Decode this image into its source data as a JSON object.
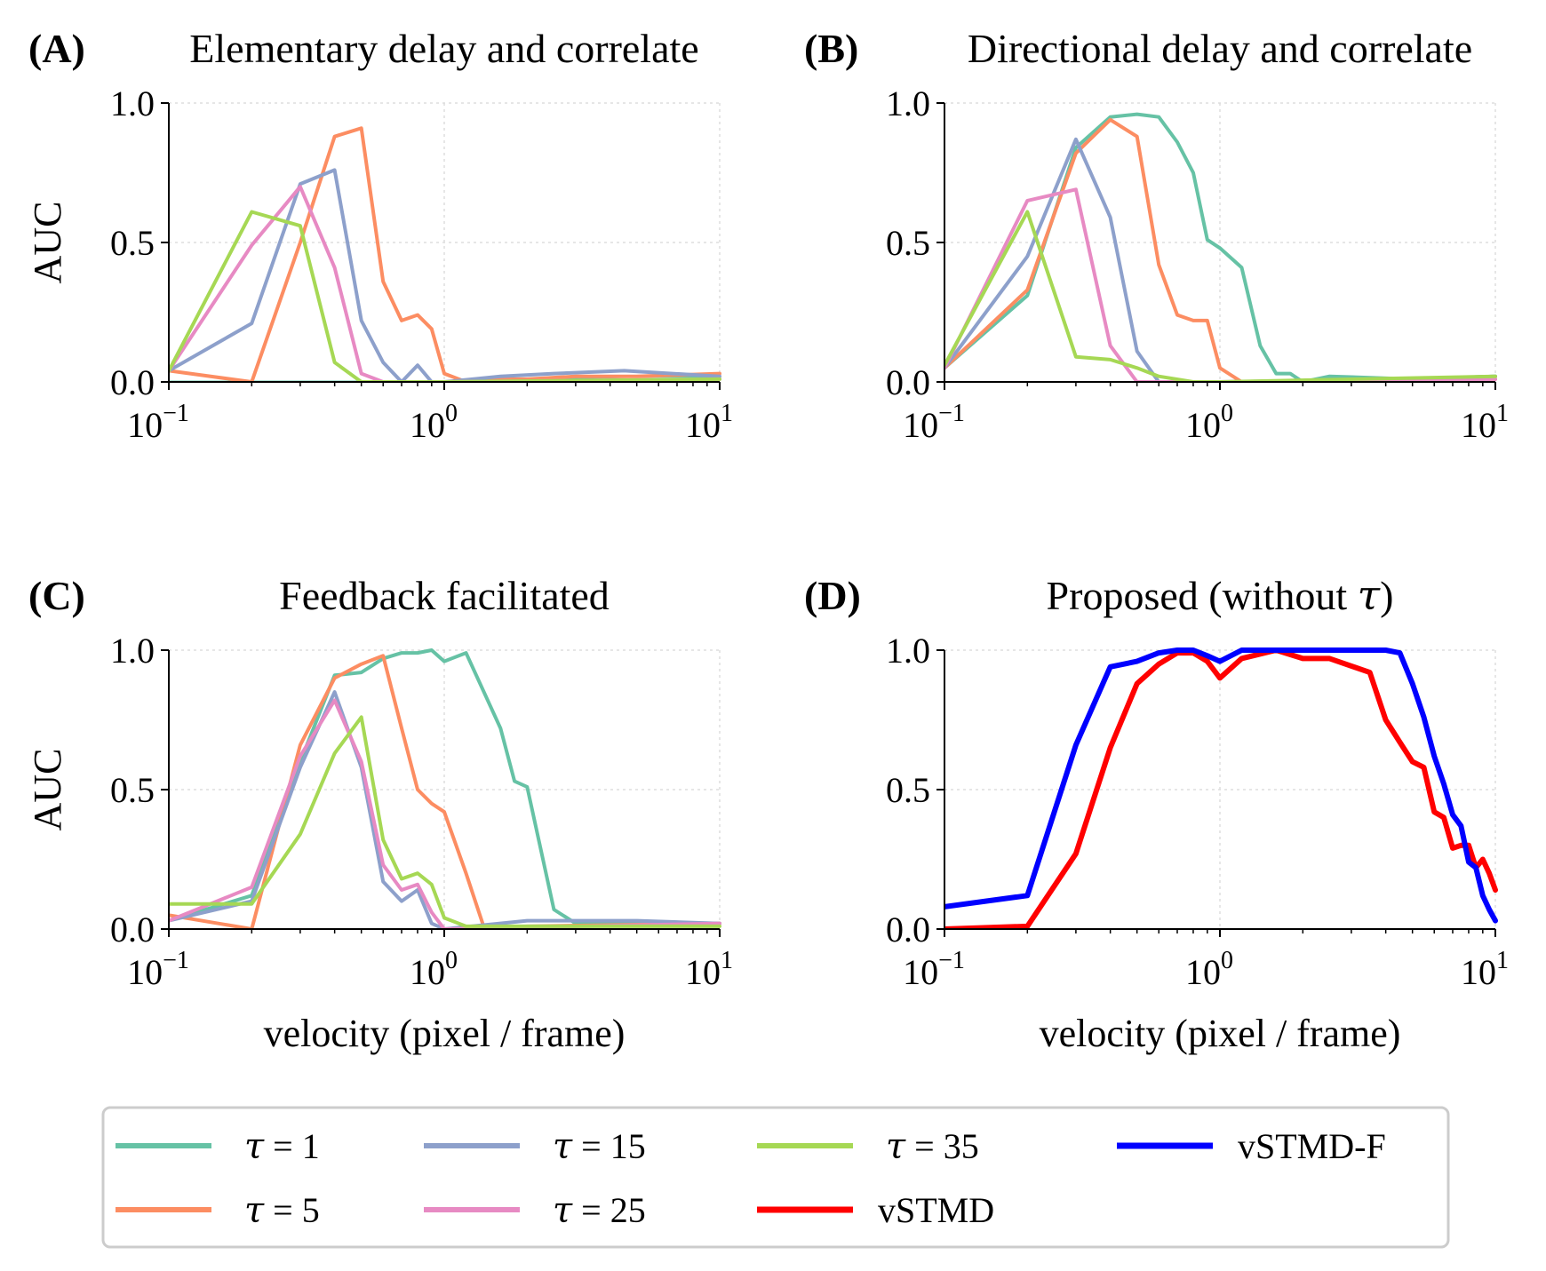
{
  "figure": {
    "legend": [
      {
        "tau": "τ",
        "label": " = 1",
        "color": "#66c2a5"
      },
      {
        "tau": "τ",
        "label": " = 5",
        "color": "#fc8d62"
      },
      {
        "tau": "τ",
        "label": " = 15",
        "color": "#8da0cb"
      },
      {
        "tau": "τ",
        "label": " = 25",
        "color": "#e78ac3"
      },
      {
        "tau": "τ",
        "label": " = 35",
        "color": "#a6d854"
      },
      {
        "tau": "",
        "label": "vSTMD",
        "color": "#ff0000"
      },
      {
        "tau": "",
        "label": "vSTMD-F",
        "color": "#0000ff"
      }
    ]
  },
  "chart_data": [
    {
      "type": "line",
      "panel": "(A)",
      "title": "Elementary delay and correlate",
      "xlabel": "",
      "ylabel": "AUC",
      "xscale": "log",
      "xlim": [
        0.1,
        10
      ],
      "ylim": [
        0,
        1
      ],
      "xticks": [
        "10",
        "10",
        "10"
      ],
      "xtick_exponents": [
        "−1",
        "0",
        "1"
      ],
      "yticks": [
        "0.0",
        "0.5",
        "1.0"
      ],
      "grid": true,
      "series": [
        {
          "name": "τ = 1",
          "color": "#66c2a5",
          "width": 3,
          "x": [
            0.1,
            0.2,
            0.3,
            0.4,
            0.5,
            1,
            2,
            5,
            10
          ],
          "y": [
            0.0,
            0.0,
            0.0,
            0.0,
            0.0,
            0.0,
            0.01,
            0.02,
            0.02
          ]
        },
        {
          "name": "τ = 5",
          "color": "#fc8d62",
          "width": 4,
          "x": [
            0.1,
            0.2,
            0.3,
            0.4,
            0.5,
            0.6,
            0.7,
            0.8,
            0.9,
            1.0,
            1.2,
            1.5,
            2,
            3,
            5,
            10
          ],
          "y": [
            0.04,
            0.0,
            0.5,
            0.88,
            0.91,
            0.36,
            0.22,
            0.24,
            0.19,
            0.03,
            0.0,
            0.01,
            0.01,
            0.02,
            0.02,
            0.03
          ]
        },
        {
          "name": "τ = 15",
          "color": "#8da0cb",
          "width": 4,
          "x": [
            0.1,
            0.2,
            0.3,
            0.4,
            0.5,
            0.6,
            0.7,
            0.8,
            0.9,
            1.0,
            1.6,
            2.5,
            4.5,
            10
          ],
          "y": [
            0.04,
            0.21,
            0.71,
            0.76,
            0.22,
            0.07,
            0.0,
            0.06,
            0.0,
            0.0,
            0.02,
            0.03,
            0.04,
            0.02
          ]
        },
        {
          "name": "τ = 25",
          "color": "#e78ac3",
          "width": 4,
          "x": [
            0.1,
            0.2,
            0.3,
            0.4,
            0.5,
            0.6,
            1.0,
            10
          ],
          "y": [
            0.04,
            0.49,
            0.7,
            0.41,
            0.03,
            0.0,
            0.0,
            0.01
          ]
        },
        {
          "name": "τ = 35",
          "color": "#a6d854",
          "width": 4,
          "x": [
            0.1,
            0.2,
            0.3,
            0.4,
            0.5,
            0.6,
            1.0,
            10
          ],
          "y": [
            0.04,
            0.61,
            0.56,
            0.07,
            0.0,
            0.0,
            0.0,
            0.01
          ]
        }
      ]
    },
    {
      "type": "line",
      "panel": "(B)",
      "title": "Directional delay and correlate",
      "xlabel": "",
      "ylabel": "",
      "xscale": "log",
      "xlim": [
        0.1,
        10
      ],
      "ylim": [
        0,
        1
      ],
      "xticks": [
        "10",
        "10",
        "10"
      ],
      "xtick_exponents": [
        "−1",
        "0",
        "1"
      ],
      "yticks": [
        "0.0",
        "0.5",
        "1.0"
      ],
      "grid": true,
      "series": [
        {
          "name": "τ = 1",
          "color": "#66c2a5",
          "width": 4,
          "x": [
            0.1,
            0.2,
            0.3,
            0.4,
            0.5,
            0.6,
            0.7,
            0.8,
            0.9,
            1.0,
            1.2,
            1.4,
            1.6,
            1.8,
            2,
            2.5,
            5,
            10
          ],
          "y": [
            0.05,
            0.31,
            0.84,
            0.95,
            0.96,
            0.95,
            0.86,
            0.75,
            0.51,
            0.48,
            0.41,
            0.13,
            0.03,
            0.03,
            0.0,
            0.02,
            0.01,
            0.02
          ]
        },
        {
          "name": "τ = 5",
          "color": "#fc8d62",
          "width": 4,
          "x": [
            0.1,
            0.2,
            0.3,
            0.4,
            0.5,
            0.6,
            0.7,
            0.8,
            0.9,
            1.0,
            1.2,
            10
          ],
          "y": [
            0.05,
            0.33,
            0.82,
            0.94,
            0.88,
            0.42,
            0.24,
            0.22,
            0.22,
            0.05,
            0.0,
            0.01
          ]
        },
        {
          "name": "τ = 15",
          "color": "#8da0cb",
          "width": 4,
          "x": [
            0.1,
            0.2,
            0.3,
            0.4,
            0.5,
            0.6,
            0.7,
            1.0,
            5,
            10
          ],
          "y": [
            0.05,
            0.45,
            0.87,
            0.59,
            0.11,
            0.0,
            0.0,
            0.0,
            0.01,
            0.02
          ]
        },
        {
          "name": "τ = 25",
          "color": "#e78ac3",
          "width": 4,
          "x": [
            0.1,
            0.2,
            0.3,
            0.4,
            0.5,
            1.0,
            10
          ],
          "y": [
            0.05,
            0.65,
            0.69,
            0.13,
            0.0,
            0.0,
            0.01
          ]
        },
        {
          "name": "τ = 35",
          "color": "#a6d854",
          "width": 4,
          "x": [
            0.1,
            0.2,
            0.3,
            0.4,
            0.5,
            0.6,
            0.8,
            1.0,
            10
          ],
          "y": [
            0.06,
            0.61,
            0.09,
            0.08,
            0.05,
            0.02,
            0.0,
            0.0,
            0.02
          ]
        }
      ]
    },
    {
      "type": "line",
      "panel": "(C)",
      "title": "Feedback facilitated",
      "xlabel": "velocity (pixel / frame)",
      "ylabel": "AUC",
      "xscale": "log",
      "xlim": [
        0.1,
        10
      ],
      "ylim": [
        0,
        1
      ],
      "xticks": [
        "10",
        "10",
        "10"
      ],
      "xtick_exponents": [
        "−1",
        "0",
        "1"
      ],
      "yticks": [
        "0.0",
        "0.5",
        "1.0"
      ],
      "grid": true,
      "series": [
        {
          "name": "τ = 1",
          "color": "#66c2a5",
          "width": 4,
          "x": [
            0.1,
            0.2,
            0.3,
            0.4,
            0.5,
            0.6,
            0.7,
            0.8,
            0.9,
            1.0,
            1.2,
            1.6,
            1.8,
            2.0,
            2.5,
            3,
            5,
            10
          ],
          "y": [
            0.03,
            0.12,
            0.6,
            0.91,
            0.92,
            0.97,
            0.99,
            0.99,
            1.0,
            0.96,
            0.99,
            0.72,
            0.53,
            0.51,
            0.07,
            0.02,
            0.02,
            0.02
          ]
        },
        {
          "name": "τ = 5",
          "color": "#fc8d62",
          "width": 4,
          "x": [
            0.1,
            0.2,
            0.3,
            0.4,
            0.5,
            0.6,
            0.7,
            0.8,
            0.9,
            1.0,
            1.2,
            1.4,
            2,
            10
          ],
          "y": [
            0.05,
            0.0,
            0.66,
            0.9,
            0.95,
            0.98,
            0.72,
            0.5,
            0.45,
            0.42,
            0.2,
            0.0,
            0.01,
            0.02
          ]
        },
        {
          "name": "τ = 15",
          "color": "#8da0cb",
          "width": 4,
          "x": [
            0.1,
            0.2,
            0.3,
            0.4,
            0.5,
            0.6,
            0.7,
            0.8,
            0.9,
            1.0,
            2,
            3,
            5,
            10
          ],
          "y": [
            0.03,
            0.1,
            0.58,
            0.85,
            0.58,
            0.17,
            0.1,
            0.14,
            0.02,
            0.0,
            0.03,
            0.03,
            0.03,
            0.02
          ]
        },
        {
          "name": "τ = 25",
          "color": "#e78ac3",
          "width": 4,
          "x": [
            0.1,
            0.2,
            0.3,
            0.4,
            0.5,
            0.6,
            0.7,
            0.8,
            0.9,
            1.0,
            10
          ],
          "y": [
            0.03,
            0.15,
            0.62,
            0.82,
            0.6,
            0.23,
            0.14,
            0.16,
            0.06,
            0.0,
            0.02
          ]
        },
        {
          "name": "τ = 35",
          "color": "#a6d854",
          "width": 4,
          "x": [
            0.1,
            0.2,
            0.3,
            0.4,
            0.5,
            0.6,
            0.7,
            0.8,
            0.9,
            1.0,
            1.2,
            10
          ],
          "y": [
            0.09,
            0.09,
            0.34,
            0.63,
            0.76,
            0.32,
            0.18,
            0.2,
            0.16,
            0.04,
            0.01,
            0.01
          ]
        }
      ]
    },
    {
      "type": "line",
      "panel": "(D)",
      "title": "Proposed (without ",
      "title_symbol": "τ",
      "title_end": ")",
      "xlabel": "velocity (pixel / frame)",
      "ylabel": "",
      "xscale": "log",
      "xlim": [
        0.1,
        10
      ],
      "ylim": [
        0,
        1
      ],
      "xticks": [
        "10",
        "10",
        "10"
      ],
      "xtick_exponents": [
        "−1",
        "0",
        "1"
      ],
      "yticks": [
        "0.0",
        "0.5",
        "1.0"
      ],
      "grid": true,
      "series": [
        {
          "name": "vSTMD",
          "color": "#ff0000",
          "width": 6,
          "x": [
            0.1,
            0.2,
            0.3,
            0.4,
            0.5,
            0.6,
            0.7,
            0.8,
            0.9,
            1.0,
            1.2,
            1.6,
            2.0,
            2.5,
            3.5,
            4.0,
            4.5,
            5.0,
            5.5,
            6.0,
            6.5,
            7.0,
            7.5,
            8.0,
            8.5,
            9.0,
            9.5,
            10.0
          ],
          "y": [
            0.0,
            0.01,
            0.27,
            0.65,
            0.88,
            0.95,
            0.99,
            0.99,
            0.96,
            0.9,
            0.97,
            1.0,
            0.97,
            0.97,
            0.92,
            0.75,
            0.67,
            0.6,
            0.58,
            0.42,
            0.4,
            0.29,
            0.3,
            0.3,
            0.22,
            0.25,
            0.2,
            0.14
          ]
        },
        {
          "name": "vSTMD-F",
          "color": "#0000ff",
          "width": 6,
          "x": [
            0.1,
            0.2,
            0.3,
            0.4,
            0.5,
            0.6,
            0.7,
            0.8,
            0.9,
            1.0,
            1.2,
            2.0,
            3.0,
            4.0,
            4.5,
            5.0,
            5.5,
            6.0,
            6.5,
            7.0,
            7.5,
            8.0,
            8.5,
            9.0,
            9.5,
            10.0
          ],
          "y": [
            0.08,
            0.12,
            0.66,
            0.94,
            0.96,
            0.99,
            1.0,
            1.0,
            0.98,
            0.96,
            1.0,
            1.0,
            1.0,
            1.0,
            0.99,
            0.88,
            0.76,
            0.62,
            0.52,
            0.41,
            0.37,
            0.24,
            0.22,
            0.12,
            0.07,
            0.03
          ]
        }
      ]
    }
  ]
}
